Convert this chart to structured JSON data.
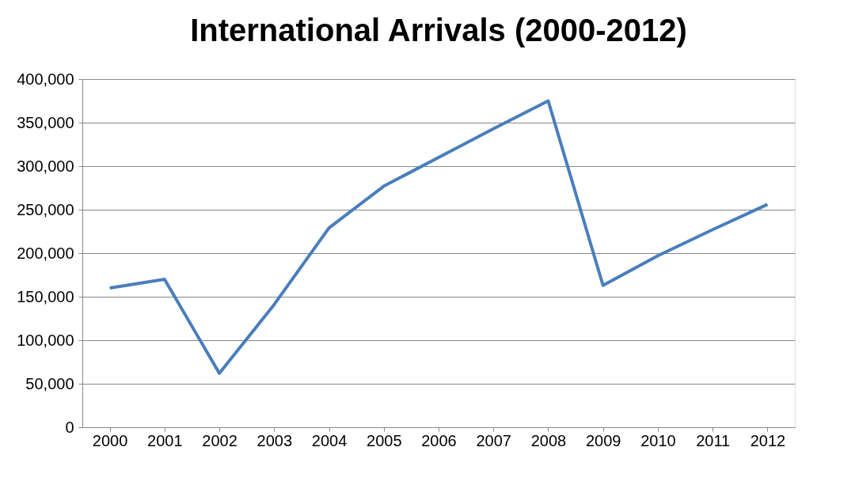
{
  "chart_data": {
    "type": "line",
    "title": "International Arrivals (2000-2012)",
    "categories": [
      "2000",
      "2001",
      "2002",
      "2003",
      "2004",
      "2005",
      "2006",
      "2007",
      "2008",
      "2009",
      "2010",
      "2011",
      "2012"
    ],
    "series": [
      {
        "color": "#4a7ebb",
        "values": [
          160000,
          170000,
          62000,
          141000,
          229000,
          277000,
          310000,
          343000,
          375000,
          163000,
          197000,
          227000,
          256000
        ]
      }
    ],
    "ylim": [
      0,
      400000
    ],
    "yticks": [
      0,
      {
        "value": 50000,
        "label": "50,000"
      },
      {
        "value": 100000,
        "label": "100,000"
      },
      {
        "value": 150000,
        "label": "150,000"
      },
      {
        "value": 200000,
        "label": "200,000"
      },
      {
        "value": 250000,
        "label": "250,000"
      },
      {
        "value": 300000,
        "label": "300,000"
      },
      {
        "value": 350000,
        "label": "350,000"
      },
      {
        "value": 400000,
        "label": "400,000"
      }
    ],
    "grid": "y",
    "marker": "none",
    "line_style": "solid"
  }
}
